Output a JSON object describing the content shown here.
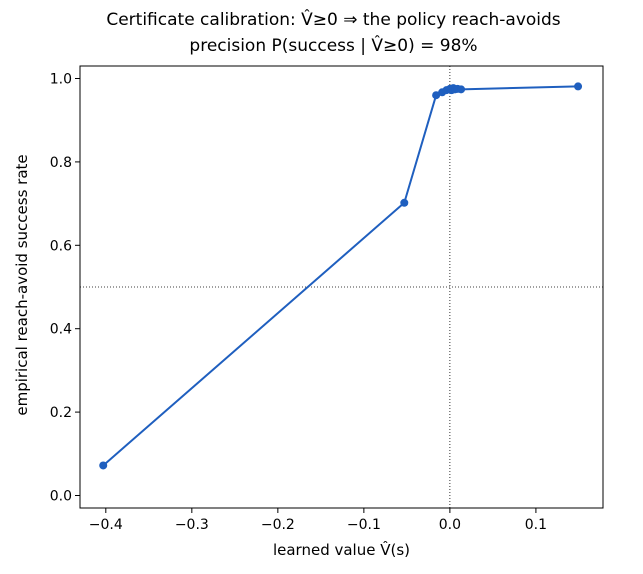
{
  "chart_data": {
    "type": "line",
    "title": "Certificate calibration: V̂≥0 ⇒ the policy reach-avoids",
    "subtitle": "precision P(success | V̂≥0) = 98%",
    "xlabel": "learned value  V̂(s)",
    "ylabel": "empirical reach-avoid success rate",
    "xlim": [
      -0.43,
      0.178
    ],
    "ylim": [
      -0.03,
      1.03
    ],
    "xticks": [
      -0.4,
      -0.3,
      -0.2,
      -0.1,
      0.0,
      0.1
    ],
    "xtick_labels": [
      "−0.4",
      "−0.3",
      "−0.2",
      "−0.1",
      "0.0",
      "0.1"
    ],
    "yticks": [
      0.0,
      0.2,
      0.4,
      0.6,
      0.8,
      1.0
    ],
    "ytick_labels": [
      "0.0",
      "0.2",
      "0.4",
      "0.6",
      "0.8",
      "1.0"
    ],
    "grid": false,
    "reference_lines": {
      "vertical_x": 0.0,
      "horizontal_y": 0.5,
      "style": "dotted"
    },
    "series": [
      {
        "color": "#1f5fbf",
        "marker": "circle",
        "x": [
          -0.403,
          -0.053,
          -0.016,
          -0.009,
          -0.004,
          0.0,
          0.002,
          0.004,
          0.006,
          0.009,
          0.013,
          0.149
        ],
        "y": [
          0.072,
          0.702,
          0.96,
          0.967,
          0.972,
          0.975,
          0.972,
          0.977,
          0.974,
          0.975,
          0.974,
          0.981
        ]
      }
    ]
  }
}
